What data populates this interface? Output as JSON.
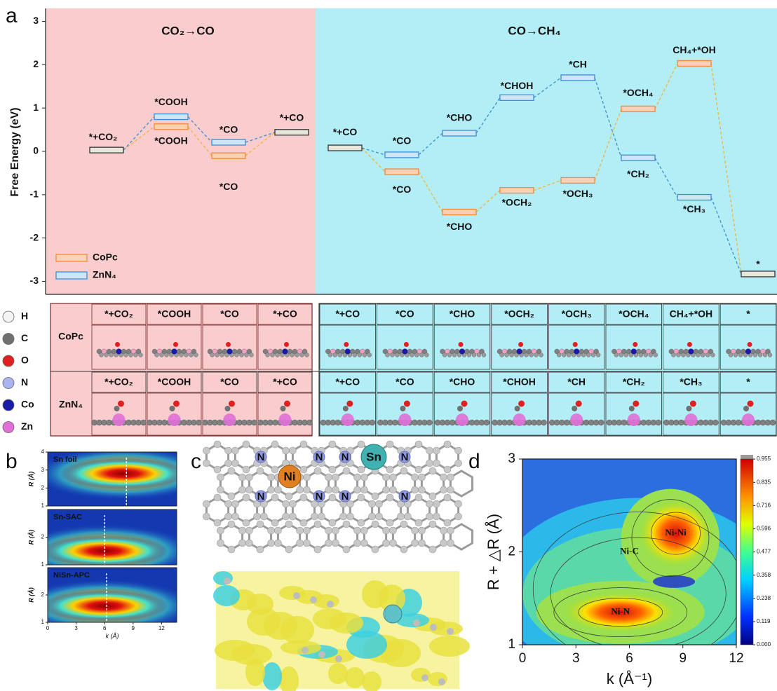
{
  "figure": {
    "panel_labels": [
      "a",
      "b",
      "c",
      "d"
    ]
  },
  "chart_data": [
    {
      "type": "energy-diagram",
      "regions": [
        {
          "title": "CO₂→CO",
          "color": "#f9cdcd"
        },
        {
          "title": "CO→CH₄",
          "color": "#b3eef6"
        }
      ],
      "ylabel": "Free Energy (eV)",
      "ylim": [
        -3.3,
        3.3
      ],
      "yticks": [
        -3,
        -2,
        -1,
        0,
        1,
        2,
        3
      ],
      "shared_color": "#333333",
      "shared_fill": "#e6e6da",
      "legend": "lower left",
      "series": [
        {
          "name": "CoPc",
          "color": "#f08a3c",
          "fill": "#fbd0b4",
          "line_color": "#f2b33a",
          "values": [
            0.03,
            0.57,
            -0.1,
            0.44,
            0.08,
            -0.47,
            -1.4,
            -0.9,
            -0.67,
            0.98,
            2.03,
            -2.83
          ],
          "labels": [
            "*+CO₂",
            "*COOH",
            "*CO",
            "*+CO",
            "*+CO",
            "*CO",
            "*CHO",
            "*OCH₂",
            "*OCH₃",
            "*OCH₄",
            "CH₄+*OH",
            "*"
          ]
        },
        {
          "name": "ZnN₄",
          "color": "#3b8fd9",
          "fill": "#cfe6f7",
          "line_color": "#3a8fd0",
          "values": [
            0.03,
            0.8,
            0.21,
            0.44,
            0.08,
            -0.08,
            0.42,
            1.24,
            1.7,
            -0.15,
            -1.06,
            -2.83
          ],
          "labels": [
            null,
            "*COOH",
            "*CO",
            null,
            null,
            "*CO",
            "*CHO",
            "*CHOH",
            "*CH",
            "*CH₂",
            "*CH₃",
            null
          ]
        }
      ]
    },
    {
      "type": "heatmap",
      "title": "Sn foil",
      "ylabel": "R (Å)",
      "xlim": [
        0,
        13.6
      ],
      "ylim": [
        1,
        4
      ],
      "yticks": [
        1,
        2,
        3,
        4
      ],
      "peak": {
        "x": 8,
        "y": 2.8
      },
      "marker_x": 8.3
    },
    {
      "type": "heatmap",
      "title": "Sn-SAC",
      "ylabel": "R (Å)",
      "xlim": [
        0,
        13.6
      ],
      "ylim": [
        1,
        3
      ],
      "yticks": [
        1,
        2
      ],
      "peak": {
        "x": 6,
        "y": 1.5
      },
      "marker_x": 6
    },
    {
      "type": "heatmap",
      "title": "NiSn-APC",
      "ylabel": "R (Å)",
      "xlim": [
        0,
        13.6
      ],
      "ylim": [
        1,
        3
      ],
      "yticks": [
        1,
        2
      ],
      "peak": {
        "x": 6,
        "y": 1.6
      },
      "marker_x": 6.2,
      "xticks": [
        0,
        3,
        6,
        9,
        12
      ],
      "xlabel": "k (Å)"
    },
    {
      "type": "contour",
      "xlabel": "k (Å⁻¹)",
      "ylabel": "R + △R (Å)",
      "xlim": [
        0,
        12
      ],
      "ylim": [
        1,
        3
      ],
      "xticks": [
        0,
        3,
        6,
        9,
        12
      ],
      "yticks": [
        1,
        2,
        3
      ],
      "clim": [
        0,
        0.955
      ],
      "cticks": [
        {
          "value": 0,
          "label": "0.000"
        },
        0.119,
        0.238,
        0.358,
        0.477,
        0.596,
        0.716,
        0.835,
        0.955
      ],
      "annotations": [
        {
          "text": "Ni-Ni",
          "x": 8.6,
          "y": 2.2
        },
        {
          "text": "Ni-C",
          "x": 6,
          "y": 2.0
        },
        {
          "text": "Ni-N",
          "x": 5.5,
          "y": 1.35
        }
      ]
    }
  ],
  "structure_table": {
    "rows": [
      {
        "name": "CoPc",
        "labels": [
          "*+CO₂",
          "*COOH",
          "*CO",
          "*+CO",
          "*+CO",
          "*CO",
          "*CHO",
          "*OCH₂",
          "*OCH₃",
          "*OCH₄",
          "CH₄+*OH",
          "*"
        ]
      },
      {
        "name": "ZnN₄",
        "labels": [
          "*+CO₂",
          "*COOH",
          "*CO",
          "*+CO",
          "*+CO",
          "*CO",
          "*CHO",
          "*CHOH",
          "*CH",
          "*CH₂",
          "*CH₃",
          "*"
        ]
      }
    ],
    "atoms": [
      {
        "symbol": "H",
        "color": "#f4f4f4"
      },
      {
        "symbol": "C",
        "color": "#707070"
      },
      {
        "symbol": "O",
        "color": "#e02020"
      },
      {
        "symbol": "N",
        "color": "#aab4f0"
      },
      {
        "symbol": "Co",
        "color": "#1a1aa8"
      },
      {
        "symbol": "Zn",
        "color": "#e070d8"
      }
    ]
  },
  "panel_c": {
    "atom_labels": [
      "N",
      "N",
      "N",
      "N",
      "Ni",
      "Sn",
      "N",
      "N",
      "N",
      "N"
    ]
  }
}
